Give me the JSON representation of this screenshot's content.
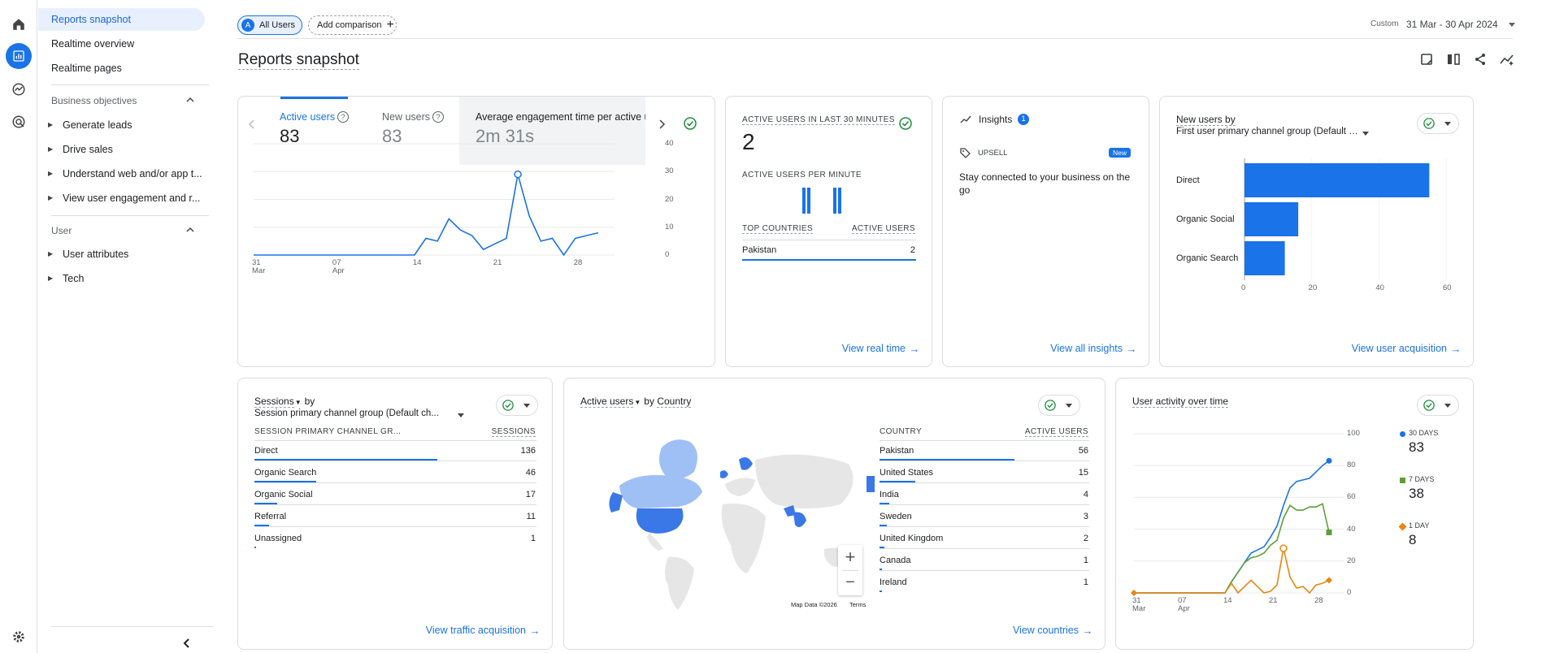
{
  "nav": {
    "items": [
      {
        "label": "Reports snapshot"
      },
      {
        "label": "Realtime overview"
      },
      {
        "label": "Realtime pages"
      }
    ],
    "section_business": "Business objectives",
    "business_items": [
      {
        "label": "Generate leads"
      },
      {
        "label": "Drive sales"
      },
      {
        "label": "Understand web and/or app t..."
      },
      {
        "label": "View user engagement and r..."
      }
    ],
    "section_user": "User",
    "user_items": [
      {
        "label": "User attributes"
      },
      {
        "label": "Tech"
      }
    ]
  },
  "topbar": {
    "all_users_letter": "A",
    "all_users_label": "All Users",
    "add_comparison": "Add comparison",
    "date_prefix": "Custom",
    "date_range": "31 Mar - 30 Apr 2024"
  },
  "page_title": "Reports snapshot",
  "overview": {
    "tabs": [
      {
        "label": "Active users",
        "value": "83"
      },
      {
        "label": "New users",
        "value": "83"
      },
      {
        "label": "Average engagement time per active us",
        "value": "2m 31s"
      }
    ],
    "chart_ticks_y": [
      "40",
      "30",
      "20",
      "10",
      "0"
    ],
    "chart_ticks_x": [
      {
        "d": "31",
        "m": "Mar"
      },
      {
        "d": "07",
        "m": "Apr"
      },
      {
        "d": "14",
        "m": ""
      },
      {
        "d": "21",
        "m": ""
      },
      {
        "d": "28",
        "m": ""
      }
    ]
  },
  "realtime": {
    "title": "ACTIVE USERS IN LAST 30 MINUTES",
    "value": "2",
    "per_minute": "ACTIVE USERS PER MINUTE",
    "col_countries": "TOP COUNTRIES",
    "col_users": "ACTIVE USERS",
    "rows": [
      {
        "country": "Pakistan",
        "users": "2"
      }
    ],
    "link": "View real time"
  },
  "insights": {
    "title": "Insights",
    "count": "1",
    "tag": "UPSELL",
    "badge": "New",
    "text": "Stay connected to your business on the go",
    "link": "View all insights"
  },
  "new_users_card": {
    "title": "New users by",
    "subtitle": "First user primary channel group (Default c...",
    "link": "View user acquisition"
  },
  "sessions_card": {
    "title_metric": "Sessions",
    "title_by": "by",
    "subtitle": "Session primary channel group (Default ch...",
    "col_dim": "SESSION PRIMARY CHANNEL GR...",
    "col_val": "SESSIONS",
    "rows": [
      {
        "label": "Direct",
        "value": "136"
      },
      {
        "label": "Organic Search",
        "value": "46"
      },
      {
        "label": "Organic Social",
        "value": "17"
      },
      {
        "label": "Referral",
        "value": "11"
      },
      {
        "label": "Unassigned",
        "value": "1"
      }
    ],
    "link": "View traffic acquisition"
  },
  "country_card": {
    "title_metric": "Active users",
    "title_by": "by",
    "title_dim": "Country",
    "col_dim": "COUNTRY",
    "col_val": "ACTIVE USERS",
    "rows": [
      {
        "label": "Pakistan",
        "value": "56"
      },
      {
        "label": "United States",
        "value": "15"
      },
      {
        "label": "India",
        "value": "4"
      },
      {
        "label": "Sweden",
        "value": "3"
      },
      {
        "label": "United Kingdom",
        "value": "2"
      },
      {
        "label": "Canada",
        "value": "1"
      },
      {
        "label": "Ireland",
        "value": "1"
      }
    ],
    "map_data": "Map Data ©2026",
    "map_terms": "Terms",
    "zoom_in": "+",
    "zoom_out": "−",
    "link": "View countries"
  },
  "activity_card": {
    "title": "User activity over time",
    "ticks_y": [
      "100",
      "80",
      "60",
      "40",
      "20",
      "0"
    ],
    "ticks_x": [
      {
        "d": "31",
        "m": "Mar"
      },
      {
        "d": "07",
        "m": "Apr"
      },
      {
        "d": "14",
        "m": ""
      },
      {
        "d": "21",
        "m": ""
      },
      {
        "d": "28",
        "m": ""
      }
    ],
    "legend": [
      {
        "label": "30 DAYS",
        "value": "83",
        "color": "#1a73e8"
      },
      {
        "label": "7 DAYS",
        "value": "38",
        "color": "#5e9e3a"
      },
      {
        "label": "1 DAY",
        "value": "8",
        "color": "#e8860f"
      }
    ]
  },
  "colors": {
    "accent": "#1a73e8",
    "bar": "#1a73e8",
    "green": "#1e8e3e",
    "map_dark": "#3b78e7",
    "map_light": "#9fc0f5",
    "map_base": "#e6e6e6"
  },
  "chart_data": [
    {
      "type": "line",
      "title": "Active users",
      "x": [
        "31 Mar",
        "01",
        "02",
        "03",
        "04",
        "05",
        "06",
        "07 Apr",
        "08",
        "09",
        "10",
        "11",
        "12",
        "13",
        "14",
        "15",
        "16",
        "17",
        "18",
        "19",
        "20",
        "21",
        "22",
        "23",
        "24",
        "25",
        "26",
        "27",
        "28",
        "29",
        "30"
      ],
      "series": [
        {
          "name": "Active users",
          "values": [
            0,
            0,
            0,
            0,
            0,
            0,
            0,
            0,
            0,
            0,
            0,
            0,
            0,
            0,
            0,
            6,
            5,
            13,
            9,
            7,
            2,
            4,
            6,
            29,
            14,
            5,
            6,
            0,
            6,
            7,
            8
          ]
        }
      ],
      "ylim": [
        0,
        40
      ]
    },
    {
      "type": "bar",
      "title": "New users by",
      "categories": [
        "Direct",
        "Organic Social",
        "Organic Search"
      ],
      "values": [
        55,
        16,
        12
      ],
      "ylim": [
        0,
        60
      ],
      "ticks": [
        "0",
        "20",
        "40",
        "60"
      ]
    },
    {
      "type": "line",
      "title": "User activity over time",
      "x": [
        "31 Mar",
        "01",
        "02",
        "03",
        "04",
        "05",
        "06",
        "07 Apr",
        "08",
        "09",
        "10",
        "11",
        "12",
        "13",
        "14",
        "15",
        "16",
        "17",
        "18",
        "19",
        "20",
        "21",
        "22",
        "23",
        "24",
        "25",
        "26",
        "27",
        "28",
        "29",
        "30"
      ],
      "series": [
        {
          "name": "30 DAYS",
          "values": [
            0,
            0,
            0,
            0,
            0,
            0,
            0,
            0,
            0,
            0,
            0,
            0,
            0,
            0,
            0,
            7,
            13,
            19,
            25,
            27,
            29,
            35,
            42,
            55,
            66,
            70,
            71,
            72,
            76,
            80,
            83
          ]
        },
        {
          "name": "7 DAYS",
          "values": [
            0,
            0,
            0,
            0,
            0,
            0,
            0,
            0,
            0,
            0,
            0,
            0,
            0,
            0,
            0,
            7,
            13,
            19,
            22,
            23,
            25,
            30,
            33,
            47,
            55,
            52,
            52,
            54,
            54,
            56,
            38
          ]
        },
        {
          "name": "1 DAY",
          "values": [
            0,
            0,
            0,
            0,
            0,
            0,
            0,
            0,
            0,
            0,
            0,
            0,
            0,
            0,
            0,
            6,
            0,
            4,
            8,
            4,
            0,
            1,
            5,
            28,
            10,
            3,
            4,
            0,
            5,
            6,
            8
          ]
        }
      ],
      "ylim": [
        0,
        100
      ]
    }
  ]
}
